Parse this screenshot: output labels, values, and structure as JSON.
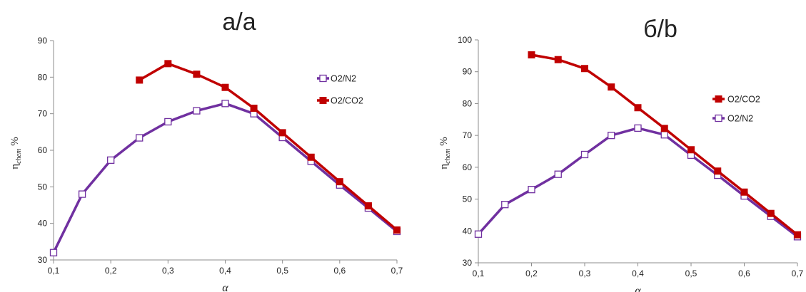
{
  "chart_data": [
    {
      "type": "line",
      "title": "а/a",
      "xlabel": "α",
      "ylabel_main": "η",
      "ylabel_sub": "chem",
      "ylabel_unit": "%",
      "xlim": [
        0.1,
        0.7
      ],
      "ylim": [
        30,
        90
      ],
      "x_ticks": [
        "0,1",
        "0,2",
        "0,3",
        "0,4",
        "0,5",
        "0,6",
        "0,7"
      ],
      "y_ticks": [
        "30",
        "40",
        "50",
        "60",
        "70",
        "80",
        "90"
      ],
      "x_tick_values": [
        0.1,
        0.2,
        0.3,
        0.4,
        0.5,
        0.6,
        0.7
      ],
      "y_tick_values": [
        30,
        40,
        50,
        60,
        70,
        80,
        90
      ],
      "grid": false,
      "legend_position": "right",
      "legend_order": [
        "O2/N2",
        "O2/CO2"
      ],
      "series": [
        {
          "name": "O2/N2",
          "color": "#7030a0",
          "marker": "hollow-square",
          "x": [
            0.1,
            0.15,
            0.2,
            0.25,
            0.3,
            0.35,
            0.4,
            0.45,
            0.5,
            0.55,
            0.6,
            0.65,
            0.7
          ],
          "values": [
            32.0,
            48.0,
            57.3,
            63.4,
            67.8,
            70.8,
            72.8,
            70.0,
            63.5,
            57.0,
            50.5,
            44.2,
            37.8
          ]
        },
        {
          "name": "O2/CO2",
          "color": "#c00000",
          "marker": "filled-square",
          "x": [
            0.25,
            0.3,
            0.35,
            0.4,
            0.45,
            0.5,
            0.55,
            0.6,
            0.65,
            0.7
          ],
          "values": [
            79.2,
            83.7,
            80.8,
            77.2,
            71.5,
            64.8,
            58.1,
            51.4,
            44.8,
            38.2
          ]
        }
      ]
    },
    {
      "type": "line",
      "title": "б/b",
      "xlabel": "α",
      "ylabel_main": "η",
      "ylabel_sub": "chem",
      "ylabel_unit": "%",
      "xlim": [
        0.1,
        0.7
      ],
      "ylim": [
        30,
        100
      ],
      "x_ticks": [
        "0,1",
        "0,2",
        "0,3",
        "0,4",
        "0,5",
        "0,6",
        "0,7"
      ],
      "y_ticks": [
        "30",
        "40",
        "50",
        "60",
        "70",
        "80",
        "90",
        "100"
      ],
      "x_tick_values": [
        0.1,
        0.2,
        0.3,
        0.4,
        0.5,
        0.6,
        0.7
      ],
      "y_tick_values": [
        30,
        40,
        50,
        60,
        70,
        80,
        90,
        100
      ],
      "grid": false,
      "legend_position": "right",
      "legend_order": [
        "O2/CO2",
        "O2/N2"
      ],
      "series": [
        {
          "name": "O2/N2",
          "color": "#7030a0",
          "marker": "hollow-square",
          "x": [
            0.1,
            0.15,
            0.2,
            0.25,
            0.3,
            0.35,
            0.4,
            0.45,
            0.5,
            0.55,
            0.6,
            0.65,
            0.7
          ],
          "values": [
            39.0,
            48.3,
            53.0,
            57.8,
            64.0,
            70.0,
            72.3,
            70.2,
            63.8,
            57.5,
            51.0,
            44.6,
            38.2
          ]
        },
        {
          "name": "O2/CO2",
          "color": "#c00000",
          "marker": "filled-square",
          "x": [
            0.2,
            0.25,
            0.3,
            0.35,
            0.4,
            0.45,
            0.5,
            0.55,
            0.6,
            0.65,
            0.7
          ],
          "values": [
            95.3,
            93.8,
            91.0,
            85.2,
            78.7,
            72.2,
            65.5,
            58.8,
            52.2,
            45.5,
            38.8
          ]
        }
      ]
    }
  ]
}
